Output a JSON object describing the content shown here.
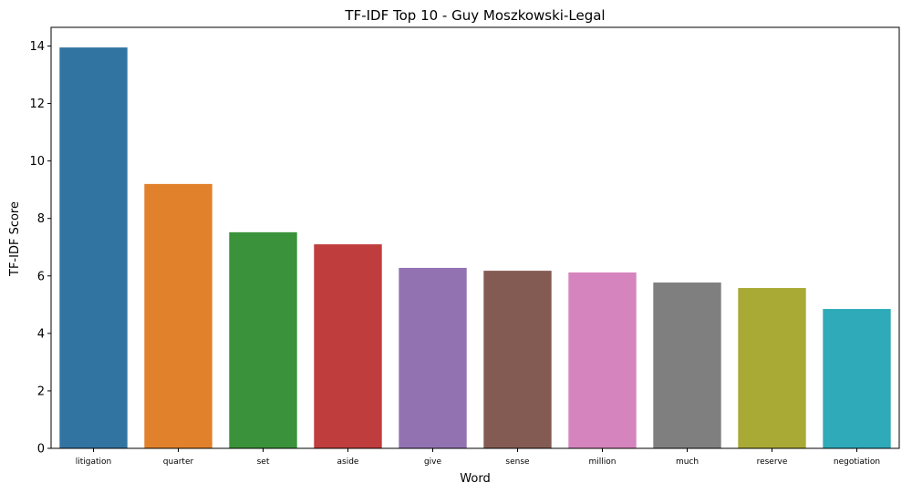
{
  "chart_data": {
    "type": "bar",
    "title": "TF-IDF Top 10 - Guy Moszkowski-Legal",
    "xlabel": "Word",
    "ylabel": "TF-IDF Score",
    "categories": [
      "litigation",
      "quarter",
      "set",
      "aside",
      "give",
      "sense",
      "million",
      "much",
      "reserve",
      "negotiation"
    ],
    "values": [
      13.95,
      9.2,
      7.52,
      7.1,
      6.28,
      6.18,
      6.12,
      5.77,
      5.58,
      4.85
    ],
    "colors": [
      "#3274a1",
      "#e1812c",
      "#3a923a",
      "#c03d3e",
      "#9372b2",
      "#845b53",
      "#d684bd",
      "#7f7f7f",
      "#a9aa35",
      "#2eaab8"
    ],
    "ylim": [
      0,
      14.65
    ],
    "yticks": [
      0,
      2,
      4,
      6,
      8,
      10,
      12,
      14
    ],
    "ytick_labels": [
      "0",
      "2",
      "4",
      "6",
      "8",
      "10",
      "12",
      "14"
    ],
    "grid": false,
    "legend": "none"
  }
}
